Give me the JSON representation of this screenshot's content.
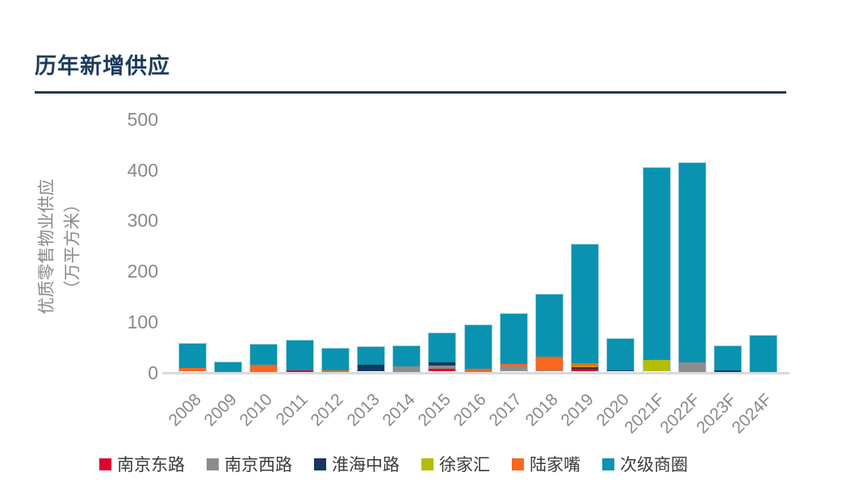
{
  "header": {
    "title": "历年新增供应"
  },
  "y_axis": {
    "label_line1": "优质零售物业供应",
    "label_line2": "（万平方米）"
  },
  "chart_data": {
    "type": "bar",
    "stacked": true,
    "title": "历年新增供应",
    "ylabel": "优质零售物业供应（万平方米）",
    "xlabel": "",
    "ylim": [
      0,
      500
    ],
    "yticks": [
      0,
      100,
      200,
      300,
      400,
      500
    ],
    "grid": false,
    "legend_position": "bottom",
    "categories": [
      "2008",
      "2009",
      "2010",
      "2011",
      "2012",
      "2013",
      "2014",
      "2015",
      "2016",
      "2017",
      "2018",
      "2019",
      "2020",
      "2021F",
      "2022F",
      "2023F",
      "2024F"
    ],
    "series": [
      {
        "name": "南京东路",
        "color": "#DE012F",
        "values": [
          0,
          0,
          0,
          2,
          0,
          0,
          0,
          5,
          0,
          0,
          0,
          5,
          0,
          0,
          0,
          0,
          0
        ]
      },
      {
        "name": "南京西路",
        "color": "#8C8C8C",
        "values": [
          0,
          0,
          0,
          0,
          0,
          0,
          10,
          7,
          0,
          10,
          3,
          0,
          0,
          0,
          18,
          0,
          0
        ]
      },
      {
        "name": "淮海中路",
        "color": "#17375E",
        "values": [
          0,
          0,
          0,
          0,
          0,
          13,
          0,
          7,
          0,
          0,
          0,
          3,
          3,
          0,
          0,
          3,
          0
        ]
      },
      {
        "name": "徐家汇",
        "color": "#B4BD00",
        "values": [
          0,
          0,
          0,
          0,
          0,
          0,
          0,
          0,
          0,
          0,
          0,
          3,
          0,
          23,
          0,
          0,
          0
        ]
      },
      {
        "name": "陆家嘴",
        "color": "#F8671F",
        "values": [
          7,
          0,
          13,
          0,
          3,
          0,
          0,
          0,
          5,
          5,
          27,
          5,
          0,
          0,
          0,
          0,
          0
        ]
      },
      {
        "name": "次级商圈",
        "color": "#0A93B0",
        "values": [
          48,
          19,
          41,
          60,
          43,
          36,
          41,
          56,
          86,
          99,
          123,
          235,
          62,
          380,
          395,
          48,
          71
        ]
      }
    ]
  },
  "colors": {
    "title": "#1C3A5E",
    "axis_text": "#87898C",
    "baseline": "#D9D9D9",
    "legend_text": "#3A3A3A",
    "bar_border": "#A8D6E4"
  }
}
